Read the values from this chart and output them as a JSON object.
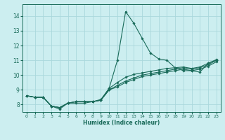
{
  "title": "",
  "xlabel": "Humidex (Indice chaleur)",
  "ylabel": "",
  "bg_color": "#cceef0",
  "grid_color": "#aad8dc",
  "line_color": "#1a6b5a",
  "xlim": [
    -0.5,
    23.5
  ],
  "ylim": [
    7.5,
    14.8
  ],
  "xticks": [
    0,
    1,
    2,
    3,
    4,
    5,
    6,
    7,
    8,
    9,
    10,
    11,
    12,
    13,
    14,
    15,
    16,
    17,
    18,
    19,
    20,
    21,
    22,
    23
  ],
  "yticks": [
    8,
    9,
    10,
    11,
    12,
    13,
    14
  ],
  "lines": [
    {
      "x": [
        0,
        1,
        2,
        3,
        4,
        5,
        6,
        7,
        8,
        9,
        10,
        11,
        12,
        13,
        14,
        15,
        16,
        17,
        18,
        19,
        20,
        21,
        22,
        23
      ],
      "y": [
        8.6,
        8.5,
        8.5,
        7.9,
        7.7,
        8.1,
        8.2,
        8.2,
        8.2,
        8.3,
        9.1,
        11.0,
        14.3,
        13.5,
        12.5,
        11.5,
        11.1,
        11.0,
        10.5,
        10.3,
        10.3,
        10.2,
        10.8,
        11.0
      ]
    },
    {
      "x": [
        0,
        1,
        2,
        3,
        4,
        5,
        6,
        7,
        8,
        9,
        10,
        11,
        12,
        13,
        14,
        15,
        16,
        17,
        18,
        19,
        20,
        21,
        22,
        23
      ],
      "y": [
        8.6,
        8.5,
        8.5,
        7.9,
        7.8,
        8.1,
        8.2,
        8.2,
        8.2,
        8.35,
        9.1,
        9.5,
        9.85,
        10.05,
        10.15,
        10.25,
        10.35,
        10.45,
        10.5,
        10.55,
        10.45,
        10.55,
        10.8,
        11.05
      ]
    },
    {
      "x": [
        0,
        1,
        2,
        3,
        4,
        5,
        6,
        7,
        8,
        9,
        10,
        11,
        12,
        13,
        14,
        15,
        16,
        17,
        18,
        19,
        20,
        21,
        22,
        23
      ],
      "y": [
        8.6,
        8.5,
        8.5,
        7.9,
        7.8,
        8.1,
        8.2,
        8.2,
        8.2,
        8.3,
        9.0,
        9.3,
        9.6,
        9.8,
        10.0,
        10.1,
        10.2,
        10.3,
        10.4,
        10.5,
        10.4,
        10.5,
        10.7,
        11.0
      ]
    },
    {
      "x": [
        0,
        1,
        2,
        3,
        4,
        5,
        6,
        7,
        8,
        9,
        10,
        11,
        12,
        13,
        14,
        15,
        16,
        17,
        18,
        19,
        20,
        21,
        22,
        23
      ],
      "y": [
        8.6,
        8.5,
        8.5,
        7.9,
        7.8,
        8.1,
        8.1,
        8.1,
        8.2,
        8.3,
        9.0,
        9.2,
        9.5,
        9.7,
        9.9,
        10.0,
        10.1,
        10.2,
        10.3,
        10.4,
        10.3,
        10.4,
        10.6,
        10.9
      ]
    }
  ]
}
